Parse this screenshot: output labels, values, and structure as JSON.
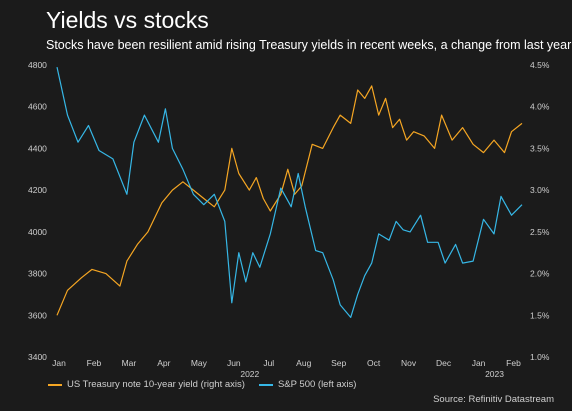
{
  "title": "Yields vs stocks",
  "subtitle": "Stocks have been resilient amid rising Treasury yields in recent weeks, a change from last year",
  "source": "Source: Refinitiv Datastream",
  "chart_data": {
    "type": "line",
    "x_labels": [
      "Jan",
      "Feb",
      "Mar",
      "Apr",
      "May",
      "Jun",
      "Jul",
      "Aug",
      "Sep",
      "Oct",
      "Nov",
      "Dec",
      "Jan",
      "Feb"
    ],
    "year_labels": [
      {
        "label": "2022",
        "after_month_index": 5
      },
      {
        "label": "2023",
        "after_month_index": 12
      }
    ],
    "left_axis": {
      "ticks": [
        "4800",
        "4600",
        "4400",
        "4200",
        "4000",
        "3800",
        "3600",
        "3400"
      ],
      "ylim": [
        3400,
        4800
      ]
    },
    "right_axis": {
      "ticks": [
        "4.5%",
        "4.0%",
        "3.5%",
        "3.0%",
        "2.5%",
        "2.0%",
        "1.5%",
        "1.0%"
      ],
      "ylim": [
        1.0,
        4.5
      ]
    },
    "grid": false,
    "legend_position": "bottom-left",
    "series": [
      {
        "name": "US Treasury note 10-year yield (right axis)",
        "axis": "right",
        "color": "#f5a623",
        "x": [
          0,
          0.3,
          0.7,
          1.0,
          1.4,
          1.8,
          2.0,
          2.3,
          2.6,
          3.0,
          3.3,
          3.6,
          3.9,
          4.2,
          4.5,
          4.8,
          5.0,
          5.2,
          5.5,
          5.7,
          5.9,
          6.1,
          6.4,
          6.6,
          6.8,
          7.0,
          7.3,
          7.6,
          7.9,
          8.1,
          8.4,
          8.6,
          8.8,
          9.0,
          9.2,
          9.4,
          9.6,
          9.8,
          10.0,
          10.2,
          10.5,
          10.8,
          11.0,
          11.3,
          11.6,
          11.9,
          12.2,
          12.5,
          12.8,
          13.0,
          13.3
        ],
        "values": [
          1.5,
          1.8,
          1.95,
          2.05,
          2.0,
          1.85,
          2.15,
          2.35,
          2.5,
          2.85,
          3.0,
          3.1,
          3.0,
          2.9,
          2.8,
          3.0,
          3.5,
          3.2,
          3.0,
          3.15,
          2.9,
          2.75,
          2.95,
          3.25,
          2.95,
          3.05,
          3.55,
          3.5,
          3.75,
          3.9,
          3.8,
          4.2,
          4.1,
          4.25,
          3.9,
          4.1,
          3.75,
          3.85,
          3.6,
          3.7,
          3.65,
          3.5,
          3.9,
          3.6,
          3.75,
          3.55,
          3.45,
          3.6,
          3.45,
          3.7,
          3.8
        ]
      },
      {
        "name": "S&P 500 (left axis)",
        "axis": "left",
        "color": "#36b7e6",
        "x": [
          0,
          0.3,
          0.6,
          0.9,
          1.2,
          1.6,
          2.0,
          2.2,
          2.5,
          2.9,
          3.1,
          3.3,
          3.6,
          3.9,
          4.2,
          4.5,
          4.8,
          5.0,
          5.2,
          5.4,
          5.6,
          5.8,
          6.1,
          6.4,
          6.7,
          6.9,
          7.1,
          7.4,
          7.6,
          7.9,
          8.1,
          8.4,
          8.6,
          8.8,
          9.0,
          9.2,
          9.5,
          9.7,
          9.9,
          10.1,
          10.4,
          10.6,
          10.9,
          11.1,
          11.4,
          11.6,
          11.9,
          12.2,
          12.5,
          12.7,
          13.0,
          13.3
        ],
        "values": [
          4790,
          4560,
          4430,
          4510,
          4390,
          4350,
          4180,
          4430,
          4560,
          4430,
          4590,
          4400,
          4300,
          4180,
          4130,
          4180,
          4050,
          3660,
          3900,
          3760,
          3900,
          3830,
          3990,
          4210,
          4120,
          4280,
          4120,
          3910,
          3900,
          3770,
          3650,
          3590,
          3700,
          3790,
          3850,
          3990,
          3960,
          4050,
          4010,
          4000,
          4080,
          3950,
          3950,
          3850,
          3940,
          3850,
          3860,
          4060,
          3990,
          4170,
          4080,
          4130
        ]
      }
    ]
  }
}
